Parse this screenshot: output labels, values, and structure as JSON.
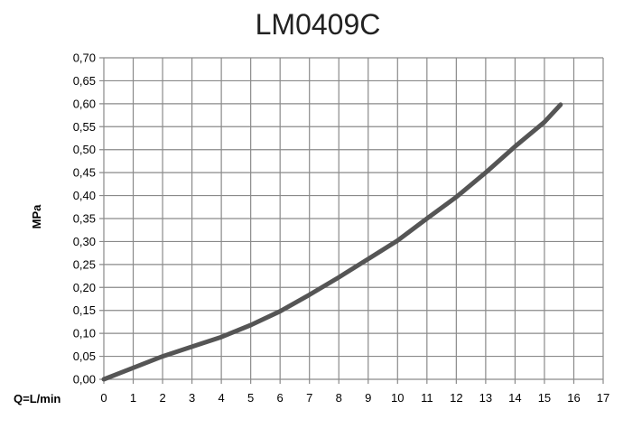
{
  "chart_data": {
    "type": "line",
    "title": "LM0409C",
    "xlabel": "Q=L/min",
    "ylabel": "MPa",
    "xlim": [
      0,
      17
    ],
    "ylim": [
      0,
      0.7
    ],
    "x_ticks": [
      "0",
      "1",
      "2",
      "3",
      "4",
      "5",
      "6",
      "7",
      "8",
      "9",
      "10",
      "11",
      "12",
      "13",
      "14",
      "15",
      "16",
      "17"
    ],
    "y_ticks": [
      "0,00",
      "0,05",
      "0,10",
      "0,15",
      "0,20",
      "0,25",
      "0,30",
      "0,35",
      "0,40",
      "0,45",
      "0,50",
      "0,55",
      "0,60",
      "0,65",
      "0,70"
    ],
    "grid": true,
    "series": [
      {
        "x": [
          0,
          1,
          2,
          3,
          4,
          5,
          6,
          7,
          8,
          9,
          10,
          11,
          12,
          13,
          14,
          15,
          15.55
        ],
        "values": [
          0.0,
          0.025,
          0.05,
          0.071,
          0.092,
          0.118,
          0.148,
          0.184,
          0.222,
          0.262,
          0.302,
          0.35,
          0.397,
          0.45,
          0.507,
          0.56,
          0.598
        ]
      }
    ],
    "colors": {
      "line": "#555555",
      "grid": "#8a8a8a",
      "frame": "#8a8a8a"
    }
  }
}
